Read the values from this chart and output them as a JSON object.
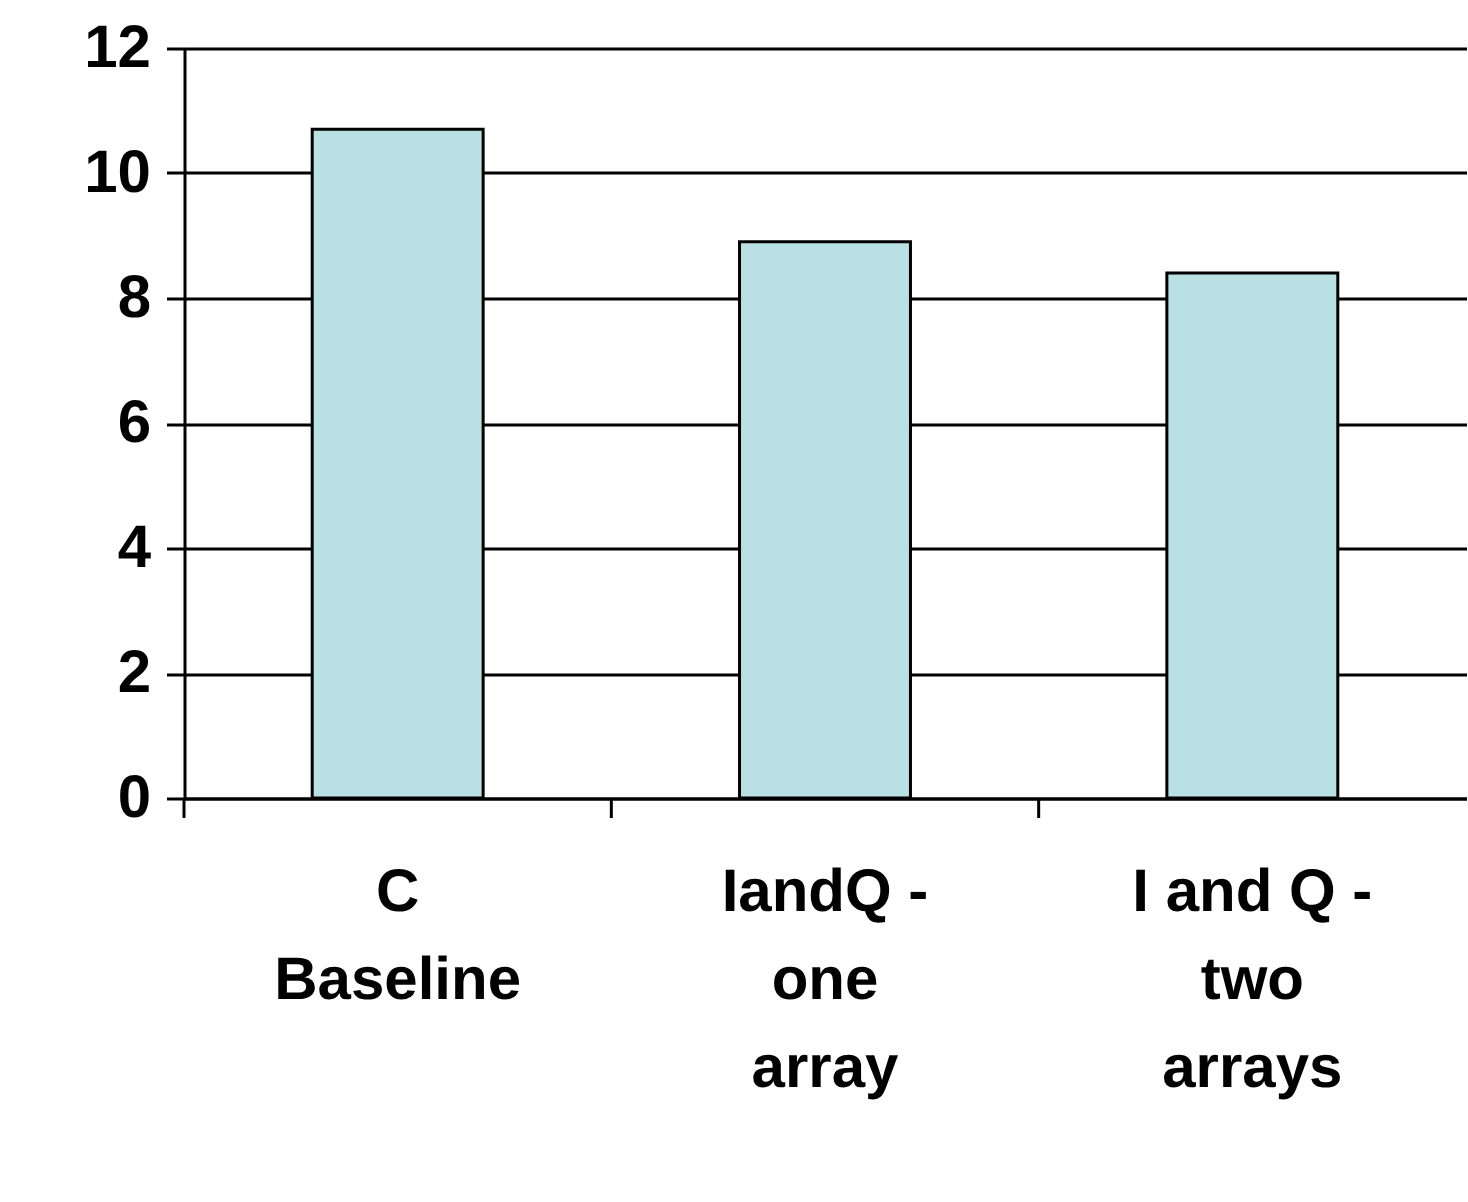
{
  "chart_data": {
    "type": "bar",
    "categories": [
      "C Baseline",
      "IandQ - one array",
      "I and Q - two arrays"
    ],
    "values": [
      10.7,
      8.9,
      8.4
    ],
    "color": "#b9e0e2",
    "ylim": [
      0,
      12
    ],
    "yticks": [
      0,
      2,
      4,
      6,
      8,
      10,
      12
    ],
    "grid": "y"
  }
}
